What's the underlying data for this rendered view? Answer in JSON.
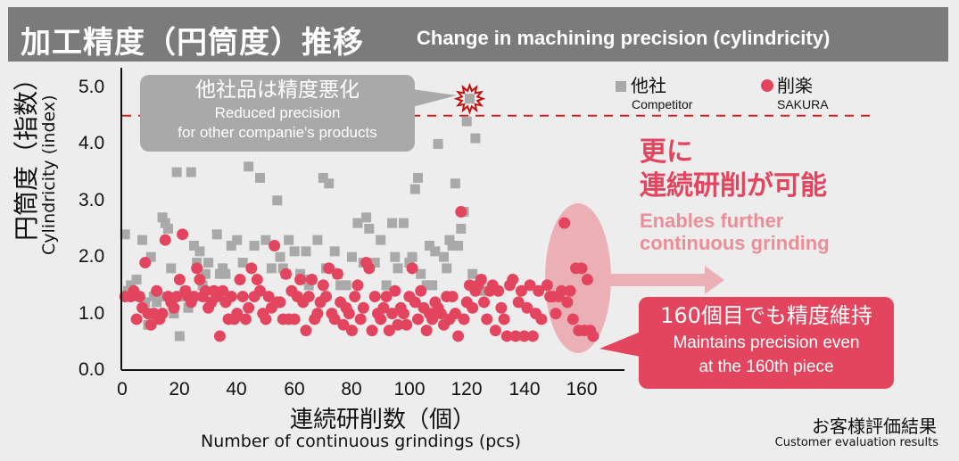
{
  "header": {
    "title_jp": "加工精度（円筒度）推移",
    "title_en": "Change in machining precision (cylindricity)"
  },
  "axes": {
    "ylabel_jp": "円筒度（指数）",
    "ylabel_en": "Cylindricity (index)",
    "xlabel_jp": "連続研削数（個）",
    "xlabel_en": "Number of continuous grindings (pcs)",
    "yticks": [
      "5.0",
      "4.0",
      "3.0",
      "2.0",
      "1.0",
      "0.0"
    ],
    "xticks": [
      "0",
      "20",
      "40",
      "60",
      "80",
      "100",
      "120",
      "140",
      "160"
    ]
  },
  "legend": {
    "competitor_jp": "他社",
    "competitor_en": "Competitor",
    "sakura_jp": "削楽",
    "sakura_en": "SAKURA"
  },
  "annotations": {
    "competitor_callout_jp": "他社品は精度悪化",
    "competitor_callout_en1": "Reduced precision",
    "competitor_callout_en2": "for other companie's products",
    "further_jp1": "更に",
    "further_jp2": "連続研削が可能",
    "further_en1": "Enables further",
    "further_en2": "continuous grinding",
    "maintain_jp": "160個目でも精度維持",
    "maintain_en1": "Maintains precision even",
    "maintain_en2": "at the 160th piece",
    "threshold_line_value": 4.5
  },
  "source": {
    "jp": "お客様評価結果",
    "en": "Customer evaluation results"
  },
  "colors": {
    "title_bar": "#7b7b7b",
    "competitor": "#a9a9a9",
    "sakura": "#e3455e",
    "threshold": "#d42020",
    "ellipse": "#ebb0b5",
    "sub_text": "#ec8e97"
  },
  "chart_data": {
    "type": "scatter",
    "title": "Change in machining precision (cylindricity)",
    "xlabel": "Number of continuous grindings (pcs)",
    "ylabel": "Cylindricity (index)",
    "xlim": [
      0,
      170
    ],
    "ylim": [
      0,
      5.2
    ],
    "grid": false,
    "legend_position": "top-right",
    "series": [
      {
        "name": "Competitor",
        "marker": "square",
        "points": [
          [
            1,
            2.4
          ],
          [
            2,
            1.4
          ],
          [
            3,
            1.5
          ],
          [
            5,
            1.6
          ],
          [
            6,
            1.3
          ],
          [
            7,
            2.3
          ],
          [
            8,
            1.2
          ],
          [
            9,
            0.8
          ],
          [
            10,
            2.0
          ],
          [
            11,
            1.3
          ],
          [
            12,
            1.2
          ],
          [
            13,
            1.3
          ],
          [
            14,
            2.7
          ],
          [
            15,
            2.6
          ],
          [
            16,
            2.5
          ],
          [
            17,
            1.8
          ],
          [
            18,
            1.0
          ],
          [
            19,
            3.5
          ],
          [
            20,
            0.6
          ],
          [
            21,
            1.3
          ],
          [
            22,
            1.4
          ],
          [
            23,
            1.1
          ],
          [
            24,
            3.5
          ],
          [
            25,
            2.2
          ],
          [
            26,
            1.9
          ],
          [
            27,
            2.1
          ],
          [
            28,
            1.5
          ],
          [
            29,
            1.7
          ],
          [
            30,
            1.9
          ],
          [
            31,
            1.2
          ],
          [
            33,
            2.4
          ],
          [
            34,
            1.7
          ],
          [
            35,
            1.8
          ],
          [
            36,
            1.7
          ],
          [
            38,
            2.2
          ],
          [
            40,
            2.3
          ],
          [
            42,
            1.9
          ],
          [
            44,
            3.6
          ],
          [
            46,
            2.2
          ],
          [
            48,
            3.4
          ],
          [
            50,
            2.3
          ],
          [
            52,
            1.8
          ],
          [
            54,
            3.0
          ],
          [
            55,
            2.0
          ],
          [
            56,
            1.8
          ],
          [
            57,
            1.7
          ],
          [
            58,
            2.3
          ],
          [
            60,
            2.1
          ],
          [
            62,
            1.7
          ],
          [
            63,
            1.6
          ],
          [
            64,
            2.1
          ],
          [
            65,
            1.5
          ],
          [
            66,
            1.6
          ],
          [
            68,
            2.3
          ],
          [
            70,
            3.4
          ],
          [
            71,
            1.8
          ],
          [
            72,
            3.3
          ],
          [
            74,
            2.1
          ],
          [
            75,
            1.7
          ],
          [
            76,
            1.5
          ],
          [
            78,
            1.5
          ],
          [
            80,
            2.0
          ],
          [
            82,
            2.6
          ],
          [
            84,
            1.9
          ],
          [
            85,
            2.7
          ],
          [
            86,
            2.5
          ],
          [
            88,
            1.9
          ],
          [
            90,
            2.3
          ],
          [
            92,
            1.5
          ],
          [
            94,
            2.6
          ],
          [
            95,
            2.0
          ],
          [
            96,
            1.8
          ],
          [
            98,
            2.6
          ],
          [
            100,
            1.9
          ],
          [
            101,
            2.0
          ],
          [
            102,
            3.2
          ],
          [
            103,
            3.4
          ],
          [
            104,
            1.7
          ],
          [
            106,
            1.5
          ],
          [
            107,
            2.2
          ],
          [
            108,
            1.5
          ],
          [
            109,
            2.1
          ],
          [
            110,
            4.0
          ],
          [
            112,
            2.0
          ],
          [
            113,
            1.8
          ],
          [
            114,
            2.3
          ],
          [
            115,
            2.2
          ],
          [
            116,
            3.3
          ],
          [
            117,
            2.2
          ],
          [
            118,
            2.5
          ],
          [
            119,
            2.8
          ],
          [
            120,
            4.4
          ],
          [
            121,
            4.8
          ],
          [
            122,
            1.7
          ],
          [
            123,
            4.1
          ],
          [
            124,
            1.5
          ],
          [
            125,
            1.6
          ],
          [
            126,
            1.4
          ]
        ]
      },
      {
        "name": "SAKURA",
        "marker": "circle",
        "points": [
          [
            1,
            1.3
          ],
          [
            3,
            1.3
          ],
          [
            4,
            1.4
          ],
          [
            5,
            0.9
          ],
          [
            6,
            1.3
          ],
          [
            7,
            1.1
          ],
          [
            8,
            1.9
          ],
          [
            9,
            1.0
          ],
          [
            10,
            0.8
          ],
          [
            11,
            1.0
          ],
          [
            12,
            1.4
          ],
          [
            13,
            0.9
          ],
          [
            14,
            1.0
          ],
          [
            15,
            2.3
          ],
          [
            16,
            1.3
          ],
          [
            17,
            1.2
          ],
          [
            18,
            1.1
          ],
          [
            19,
            1.3
          ],
          [
            20,
            1.6
          ],
          [
            21,
            2.4
          ],
          [
            22,
            1.4
          ],
          [
            23,
            1.3
          ],
          [
            24,
            1.2
          ],
          [
            25,
            1.3
          ],
          [
            26,
            1.8
          ],
          [
            27,
            1.6
          ],
          [
            28,
            1.3
          ],
          [
            29,
            1.4
          ],
          [
            30,
            1.1
          ],
          [
            31,
            1.2
          ],
          [
            32,
            1.4
          ],
          [
            33,
            1.3
          ],
          [
            34,
            0.6
          ],
          [
            35,
            1.4
          ],
          [
            36,
            1.2
          ],
          [
            37,
            0.9
          ],
          [
            38,
            1.3
          ],
          [
            39,
            0.9
          ],
          [
            40,
            1.0
          ],
          [
            41,
            1.6
          ],
          [
            42,
            1.3
          ],
          [
            43,
            0.9
          ],
          [
            44,
            1.1
          ],
          [
            45,
            1.8
          ],
          [
            46,
            1.3
          ],
          [
            47,
            1.6
          ],
          [
            48,
            1.4
          ],
          [
            49,
            1.0
          ],
          [
            50,
            0.9
          ],
          [
            51,
            1.3
          ],
          [
            52,
            1.1
          ],
          [
            53,
            2.2
          ],
          [
            54,
            1.2
          ],
          [
            55,
            1.2
          ],
          [
            56,
            0.9
          ],
          [
            57,
            1.7
          ],
          [
            58,
            0.9
          ],
          [
            59,
            1.4
          ],
          [
            60,
            0.9
          ],
          [
            61,
            1.3
          ],
          [
            62,
            1.6
          ],
          [
            63,
            1.2
          ],
          [
            64,
            0.7
          ],
          [
            65,
            1.3
          ],
          [
            66,
            1.6
          ],
          [
            67,
            0.9
          ],
          [
            68,
            1.0
          ],
          [
            69,
            1.2
          ],
          [
            70,
            1.5
          ],
          [
            71,
            1.3
          ],
          [
            72,
            1.8
          ],
          [
            73,
            1.0
          ],
          [
            74,
            0.9
          ],
          [
            75,
            1.7
          ],
          [
            76,
            1.2
          ],
          [
            77,
            0.8
          ],
          [
            78,
            1.1
          ],
          [
            79,
            1.0
          ],
          [
            80,
            0.7
          ],
          [
            81,
            1.3
          ],
          [
            82,
            1.5
          ],
          [
            83,
            0.9
          ],
          [
            84,
            1.1
          ],
          [
            85,
            1.9
          ],
          [
            86,
            1.8
          ],
          [
            87,
            0.7
          ],
          [
            88,
            1.3
          ],
          [
            89,
            1.0
          ],
          [
            90,
            0.9
          ],
          [
            91,
            1.1
          ],
          [
            92,
            1.3
          ],
          [
            93,
            0.7
          ],
          [
            94,
            1.0
          ],
          [
            95,
            1.4
          ],
          [
            96,
            0.8
          ],
          [
            97,
            1.1
          ],
          [
            98,
            1.0
          ],
          [
            99,
            0.8
          ],
          [
            100,
            1.3
          ],
          [
            101,
            1.8
          ],
          [
            102,
            1.2
          ],
          [
            103,
            0.9
          ],
          [
            104,
            1.4
          ],
          [
            105,
            1.1
          ],
          [
            106,
            0.7
          ],
          [
            107,
            1.0
          ],
          [
            108,
            0.9
          ],
          [
            109,
            1.2
          ],
          [
            110,
            1.1
          ],
          [
            111,
            1.0
          ],
          [
            112,
            0.8
          ],
          [
            113,
            1.3
          ],
          [
            114,
            0.9
          ],
          [
            115,
            1.3
          ],
          [
            116,
            1.0
          ],
          [
            117,
            0.6
          ],
          [
            118,
            2.8
          ],
          [
            119,
            0.9
          ],
          [
            120,
            1.2
          ],
          [
            121,
            1.5
          ],
          [
            122,
            1.1
          ],
          [
            123,
            1.4
          ],
          [
            124,
            1.5
          ],
          [
            125,
            1.6
          ],
          [
            126,
            1.2
          ],
          [
            127,
            0.9
          ],
          [
            128,
            1.4
          ],
          [
            129,
            1.5
          ],
          [
            130,
            0.7
          ],
          [
            131,
            1.4
          ],
          [
            132,
            1.1
          ],
          [
            133,
            0.9
          ],
          [
            134,
            0.6
          ],
          [
            135,
            1.5
          ],
          [
            136,
            1.6
          ],
          [
            137,
            0.6
          ],
          [
            138,
            1.2
          ],
          [
            139,
            1.4
          ],
          [
            140,
            0.6
          ],
          [
            141,
            1.1
          ],
          [
            142,
            1.5
          ],
          [
            143,
            0.6
          ],
          [
            144,
            1.0
          ],
          [
            145,
            1.4
          ],
          [
            146,
            0.9
          ],
          [
            148,
            1.5
          ],
          [
            149,
            1.3
          ],
          [
            150,
            1.3
          ],
          [
            151,
            1.0
          ],
          [
            152,
            1.3
          ],
          [
            153,
            1.4
          ],
          [
            154,
            2.6
          ],
          [
            155,
            1.2
          ],
          [
            156,
            1.4
          ],
          [
            157,
            0.9
          ],
          [
            158,
            1.8
          ],
          [
            159,
            0.7
          ],
          [
            160,
            1.8
          ],
          [
            161,
            0.7
          ],
          [
            162,
            1.6
          ],
          [
            163,
            0.7
          ],
          [
            164,
            0.6
          ]
        ]
      }
    ],
    "reference_lines": [
      {
        "y": 4.5,
        "style": "dashed",
        "color": "#d42020"
      }
    ]
  }
}
